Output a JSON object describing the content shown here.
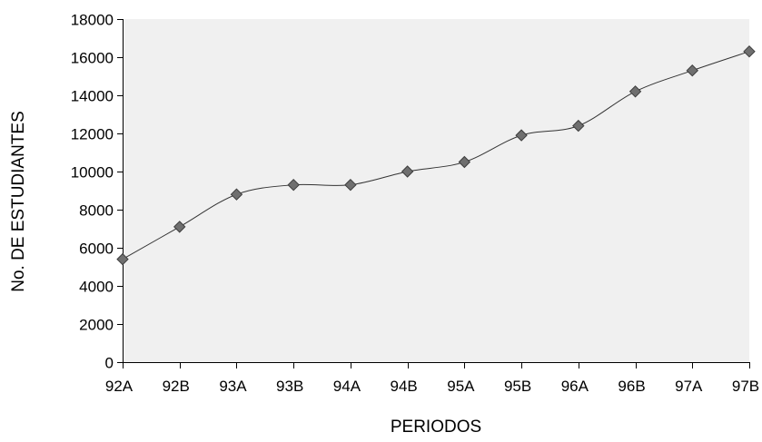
{
  "chart_data": {
    "type": "line",
    "title": "",
    "xlabel": "PERIODOS",
    "ylabel": "No. DE ESTUDIANTES",
    "categories": [
      "92A",
      "92B",
      "93A",
      "93B",
      "94A",
      "94B",
      "95A",
      "95B",
      "96A",
      "96B",
      "97A",
      "97B"
    ],
    "series": [
      {
        "values": [
          5400,
          7100,
          8800,
          9300,
          9300,
          10000,
          10500,
          11900,
          12400,
          14200,
          15300,
          16300
        ]
      }
    ],
    "ylim": [
      0,
      18000
    ],
    "yticks": [
      0,
      2000,
      4000,
      6000,
      8000,
      10000,
      12000,
      14000,
      16000,
      18000
    ],
    "grid": false,
    "legend": "none",
    "colors": {
      "plot_background": "#f0f0f0",
      "line": "#333333",
      "marker_fill": "#6f6f6f",
      "marker_stroke": "#3c3c3c",
      "axis": "#000000"
    }
  }
}
